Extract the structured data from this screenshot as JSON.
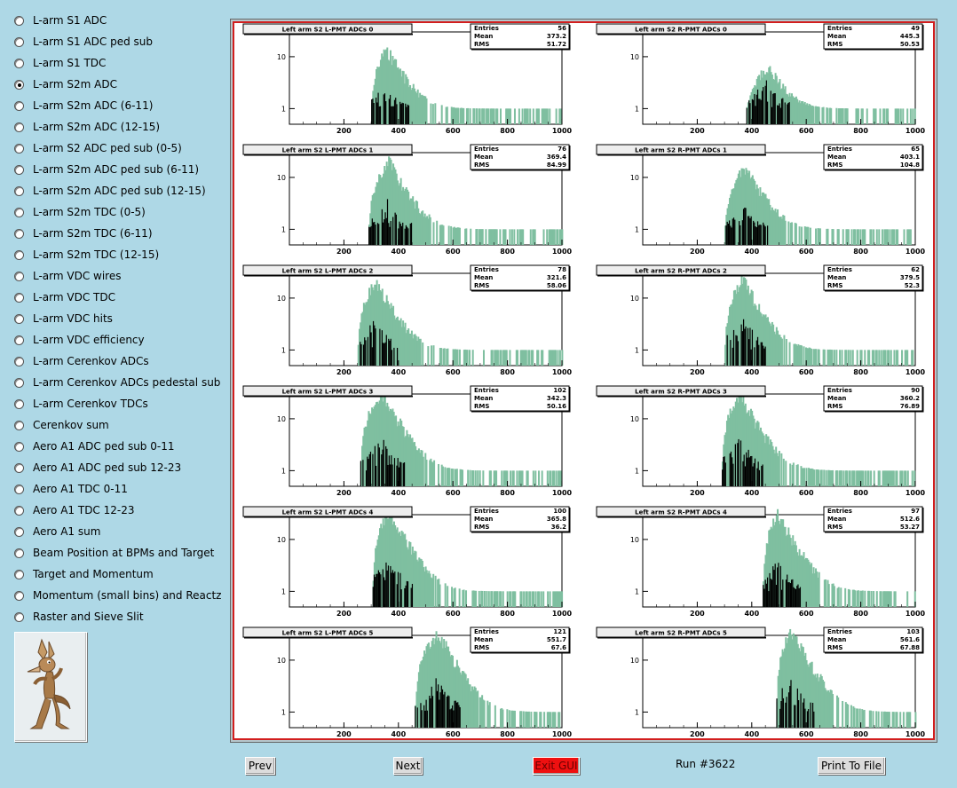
{
  "sidebar": {
    "items": [
      {
        "label": "L-arm S1 ADC",
        "selected": false
      },
      {
        "label": "L-arm S1 ADC ped sub",
        "selected": false
      },
      {
        "label": "L-arm S1 TDC",
        "selected": false
      },
      {
        "label": "L-arm S2m ADC",
        "selected": true
      },
      {
        "label": "L-arm S2m ADC (6-11)",
        "selected": false
      },
      {
        "label": "L-arm S2m ADC (12-15)",
        "selected": false
      },
      {
        "label": "L-arm S2 ADC ped sub (0-5)",
        "selected": false
      },
      {
        "label": "L-arm S2m ADC ped sub (6-11)",
        "selected": false
      },
      {
        "label": "L-arm S2m ADC ped sub (12-15)",
        "selected": false
      },
      {
        "label": "L-arm S2m TDC (0-5)",
        "selected": false
      },
      {
        "label": "L-arm S2m TDC (6-11)",
        "selected": false
      },
      {
        "label": "L-arm S2m TDC (12-15)",
        "selected": false
      },
      {
        "label": "L-arm VDC wires",
        "selected": false
      },
      {
        "label": "L-arm VDC TDC",
        "selected": false
      },
      {
        "label": "L-arm VDC hits",
        "selected": false
      },
      {
        "label": "L-arm VDC efficiency",
        "selected": false
      },
      {
        "label": "L-arm Cerenkov ADCs",
        "selected": false
      },
      {
        "label": "L-arm Cerenkov ADCs pedestal sub",
        "selected": false
      },
      {
        "label": "L-arm Cerenkov TDCs",
        "selected": false
      },
      {
        "label": "Cerenkov sum",
        "selected": false
      },
      {
        "label": "Aero A1 ADC ped sub 0-11",
        "selected": false
      },
      {
        "label": "Aero A1 ADC ped sub 12-23",
        "selected": false
      },
      {
        "label": "Aero A1 TDC 0-11",
        "selected": false
      },
      {
        "label": "Aero A1 TDC 12-23",
        "selected": false
      },
      {
        "label": "Aero A1 sum",
        "selected": false
      },
      {
        "label": "Beam Position at BPMs and Target",
        "selected": false
      },
      {
        "label": "Target and Momentum",
        "selected": false
      },
      {
        "label": "Momentum (small bins) and Reactz",
        "selected": false
      },
      {
        "label": "Raster and Sieve Slit",
        "selected": false
      }
    ]
  },
  "mascot": {
    "icon": "coyote-logo-icon"
  },
  "buttons": {
    "prev": "Prev",
    "next": "Next",
    "exit": "Exit GUI",
    "print": "Print To File"
  },
  "run_label": "Run #3622",
  "colors": {
    "background": "#aed8e6",
    "histogram_fill": "#7fbfa0",
    "histogram_dark": "#000000",
    "frame": "#d21e1e",
    "exit": "#ee1010"
  },
  "chart_data": [
    {
      "type": "histogram",
      "title": "Left arm S2 L-PMT ADCs 0",
      "stats": {
        "Entries": "56",
        "Mean": "373.2",
        "RMS": "51.72"
      },
      "xlim": [
        0,
        1000
      ],
      "xticks": [
        "200",
        "400",
        "600",
        "800",
        "1000"
      ],
      "yscale": "log",
      "yticks": [
        "1",
        "10"
      ],
      "start": 300,
      "peak": 350,
      "peak_value": 16,
      "tail_end": 1000,
      "peak_black": 2
    },
    {
      "type": "histogram",
      "title": "Left arm S2 R-PMT ADCs 0",
      "stats": {
        "Entries": "49",
        "Mean": "445.3",
        "RMS": "50.53"
      },
      "xlim": [
        0,
        1000
      ],
      "xticks": [
        "200",
        "400",
        "600",
        "800",
        "1000"
      ],
      "yscale": "log",
      "yticks": [
        "1",
        "10"
      ],
      "start": 380,
      "peak": 450,
      "peak_value": 7,
      "tail_end": 1000,
      "peak_black": 3
    },
    {
      "type": "histogram",
      "title": "Left arm S2 L-PMT ADCs 1",
      "stats": {
        "Entries": "76",
        "Mean": "369.4",
        "RMS": "84.99"
      },
      "xlim": [
        0,
        1000
      ],
      "xticks": [
        "200",
        "400",
        "600",
        "800",
        "1000"
      ],
      "yscale": "log",
      "yticks": [
        "1",
        "10"
      ],
      "start": 290,
      "peak": 360,
      "peak_value": 22,
      "tail_end": 1000,
      "peak_black": 3
    },
    {
      "type": "histogram",
      "title": "Left arm S2 R-PMT ADCs 1",
      "stats": {
        "Entries": "65",
        "Mean": "403.1",
        "RMS": "104.8"
      },
      "xlim": [
        0,
        1000
      ],
      "xticks": [
        "200",
        "400",
        "600",
        "800",
        "1000"
      ],
      "yscale": "log",
      "yticks": [
        "1",
        "10"
      ],
      "start": 300,
      "peak": 370,
      "peak_value": 18,
      "tail_end": 1000,
      "peak_black": 2
    },
    {
      "type": "histogram",
      "title": "Left arm S2 L-PMT ADCs 2",
      "stats": {
        "Entries": "78",
        "Mean": "321.6",
        "RMS": "58.06"
      },
      "xlim": [
        0,
        1000
      ],
      "xticks": [
        "200",
        "400",
        "600",
        "800",
        "1000"
      ],
      "yscale": "log",
      "yticks": [
        "1",
        "10"
      ],
      "start": 250,
      "peak": 310,
      "peak_value": 24,
      "tail_end": 1000,
      "peak_black": 3
    },
    {
      "type": "histogram",
      "title": "Left arm S2 R-PMT ADCs 2",
      "stats": {
        "Entries": "62",
        "Mean": "379.5",
        "RMS": "52.3"
      },
      "xlim": [
        0,
        1000
      ],
      "xticks": [
        "200",
        "400",
        "600",
        "800",
        "1000"
      ],
      "yscale": "log",
      "yticks": [
        "1",
        "10"
      ],
      "start": 300,
      "peak": 360,
      "peak_value": 26,
      "tail_end": 1000,
      "peak_black": 4
    },
    {
      "type": "histogram",
      "title": "Left arm S2 L-PMT ADCs 3",
      "stats": {
        "Entries": "102",
        "Mean": "342.3",
        "RMS": "50.16"
      },
      "xlim": [
        0,
        1000
      ],
      "xticks": [
        "200",
        "400",
        "600",
        "800",
        "1000"
      ],
      "yscale": "log",
      "yticks": [
        "1",
        "10"
      ],
      "start": 260,
      "peak": 335,
      "peak_value": 36,
      "tail_end": 1000,
      "peak_black": 4
    },
    {
      "type": "histogram",
      "title": "Left arm S2 R-PMT ADCs 3",
      "stats": {
        "Entries": "90",
        "Mean": "360.2",
        "RMS": "76.89"
      },
      "xlim": [
        0,
        1000
      ],
      "xticks": [
        "200",
        "400",
        "600",
        "800",
        "1000"
      ],
      "yscale": "log",
      "yticks": [
        "1",
        "10"
      ],
      "start": 290,
      "peak": 350,
      "peak_value": 34,
      "tail_end": 1000,
      "peak_black": 4
    },
    {
      "type": "histogram",
      "title": "Left arm S2 L-PMT ADCs 4",
      "stats": {
        "Entries": "100",
        "Mean": "365.8",
        "RMS": "36.2"
      },
      "xlim": [
        0,
        1000
      ],
      "xticks": [
        "200",
        "400",
        "600",
        "800",
        "1000"
      ],
      "yscale": "log",
      "yticks": [
        "1",
        "10"
      ],
      "start": 305,
      "peak": 360,
      "peak_value": 40,
      "tail_end": 1000,
      "peak_black": 4
    },
    {
      "type": "histogram",
      "title": "Left arm S2 R-PMT ADCs 4",
      "stats": {
        "Entries": "97",
        "Mean": "512.6",
        "RMS": "53.27"
      },
      "xlim": [
        0,
        1000
      ],
      "xticks": [
        "200",
        "400",
        "600",
        "800",
        "1000"
      ],
      "yscale": "log",
      "yticks": [
        "1",
        "10"
      ],
      "start": 440,
      "peak": 490,
      "peak_value": 36,
      "tail_end": 1000,
      "peak_black": 3
    },
    {
      "type": "histogram",
      "title": "Left arm S2 L-PMT ADCs 5",
      "stats": {
        "Entries": "121",
        "Mean": "551.7",
        "RMS": "67.6"
      },
      "xlim": [
        0,
        1000
      ],
      "xticks": [
        "200",
        "400",
        "600",
        "800",
        "1000"
      ],
      "yscale": "log",
      "yticks": [
        "1",
        "10"
      ],
      "start": 460,
      "peak": 540,
      "peak_value": 38,
      "tail_end": 1000,
      "peak_black": 4
    },
    {
      "type": "histogram",
      "title": "Left arm S2 R-PMT ADCs 5",
      "stats": {
        "Entries": "103",
        "Mean": "561.6",
        "RMS": "67.88"
      },
      "xlim": [
        0,
        1000
      ],
      "xticks": [
        "200",
        "400",
        "600",
        "800",
        "1000"
      ],
      "yscale": "log",
      "yticks": [
        "1",
        "10"
      ],
      "start": 490,
      "peak": 540,
      "peak_value": 42,
      "tail_end": 1000,
      "peak_black": 4
    }
  ]
}
